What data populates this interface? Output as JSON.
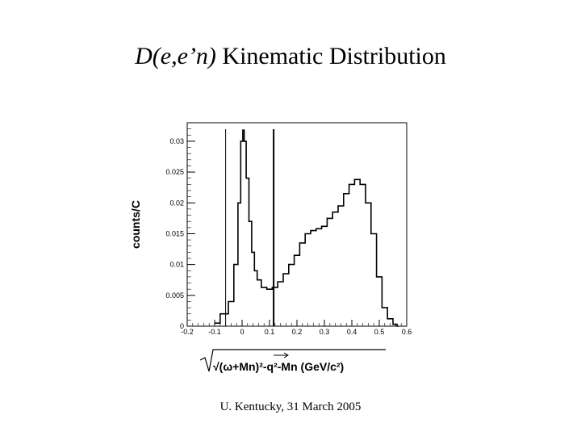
{
  "slide": {
    "title_italic": "D(e,e’n)",
    "title_rest": " Kinematic Distribution",
    "footer": "U. Kentucky, 31 March 2005"
  },
  "chart_data": {
    "type": "line",
    "ylabel": "counts/C",
    "xlabel": "√(ω+Mn)²-q²-Mn (GeV/c²)",
    "xlim": [
      -0.2,
      0.6
    ],
    "ylim": [
      0,
      0.033
    ],
    "x_ticks": [
      "-0.2",
      "-0.1",
      "0",
      "0.1",
      "0.2",
      "0.3",
      "0.4",
      "0.5",
      "0.6"
    ],
    "y_ticks": [
      "0",
      "0.005",
      "0.01",
      "0.015",
      "0.02",
      "0.025",
      "0.03"
    ],
    "cut_lines": [
      -0.06,
      0.115
    ],
    "series": [
      {
        "x": [
          -0.1,
          -0.06,
          -0.04,
          -0.02,
          -0.01,
          0.0,
          0.005,
          0.01,
          0.02,
          0.03,
          0.04,
          0.05,
          0.06,
          0.08,
          0.1,
          0.12,
          0.14,
          0.16,
          0.18,
          0.2,
          0.22,
          0.24,
          0.26,
          0.28,
          0.3,
          0.32,
          0.34,
          0.36,
          0.38,
          0.4,
          0.42,
          0.44,
          0.46,
          0.48,
          0.5,
          0.52,
          0.54,
          0.56,
          0.57
        ],
        "y": [
          0.0005,
          0.002,
          0.004,
          0.01,
          0.02,
          0.03,
          0.0318,
          0.03,
          0.024,
          0.017,
          0.012,
          0.009,
          0.0075,
          0.0063,
          0.006,
          0.0063,
          0.0072,
          0.0085,
          0.01,
          0.0115,
          0.0135,
          0.015,
          0.0155,
          0.0158,
          0.0162,
          0.0175,
          0.0185,
          0.0195,
          0.0215,
          0.023,
          0.0238,
          0.023,
          0.02,
          0.015,
          0.008,
          0.003,
          0.0012,
          0.0003,
          0.0
        ]
      }
    ]
  }
}
